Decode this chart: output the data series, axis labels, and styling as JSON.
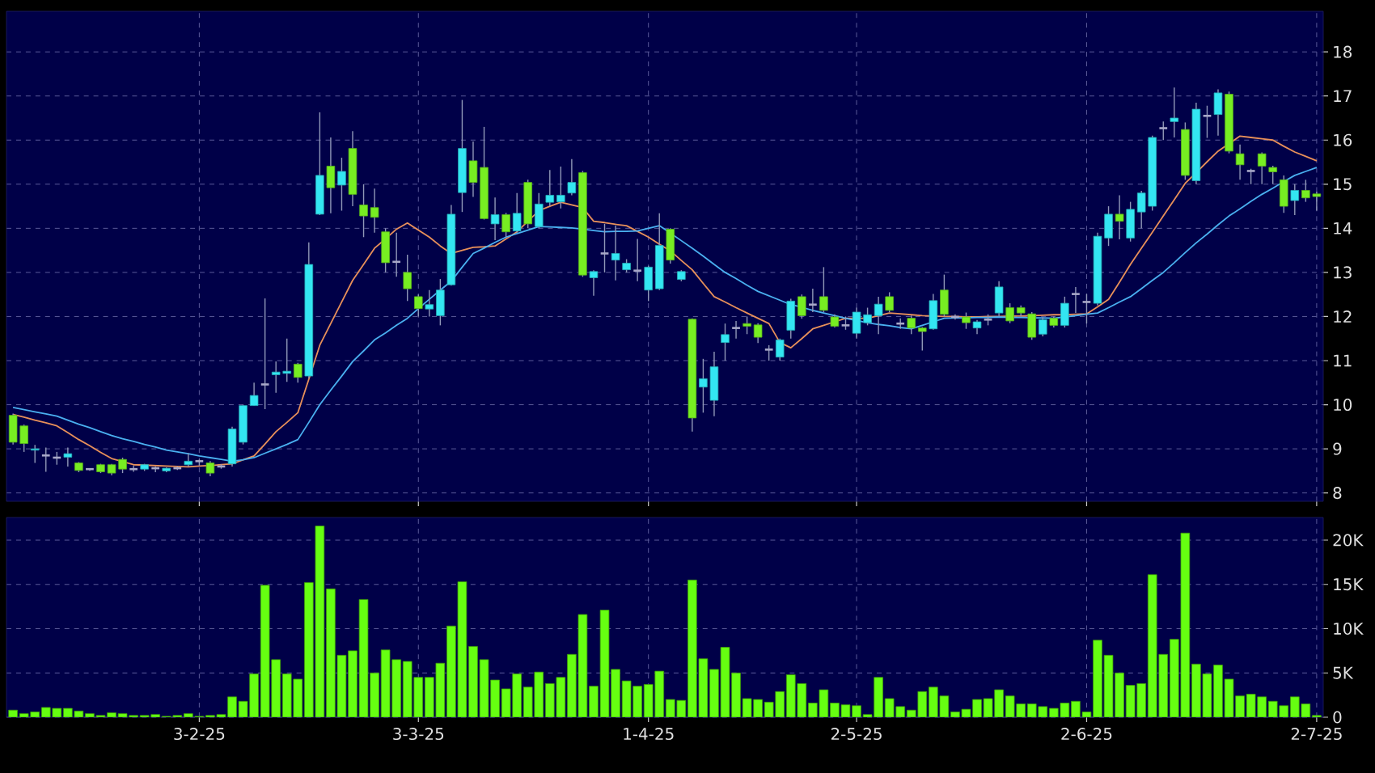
{
  "chart_data": [
    {
      "type": "candlestick",
      "tick_labels": "y",
      "grid": true,
      "ylim": [
        7.81,
        18.92
      ],
      "yticks": [
        8,
        9,
        10,
        11,
        12,
        13,
        14,
        15,
        16,
        17,
        18
      ],
      "categories": [
        null,
        null,
        null,
        null,
        null,
        null,
        null,
        null,
        null,
        null,
        null,
        null,
        null,
        null,
        null,
        null,
        null,
        null,
        null,
        null,
        null,
        null,
        null,
        null,
        null,
        null,
        null,
        null,
        null,
        null,
        null,
        null,
        null,
        null,
        null,
        null,
        null,
        null,
        null,
        null,
        null,
        null,
        null,
        null,
        null,
        null,
        null,
        null,
        null,
        null,
        null,
        null,
        null,
        null,
        null,
        null,
        null,
        null,
        null,
        null,
        null,
        null,
        null,
        null,
        null,
        null,
        null,
        null,
        null,
        null,
        null,
        null,
        null,
        null,
        null,
        null,
        null,
        null,
        null,
        null,
        null,
        null,
        null,
        null,
        null,
        null,
        null,
        null,
        null,
        null,
        null,
        null,
        null,
        null,
        null,
        null,
        null,
        null,
        null,
        null,
        null,
        null,
        null,
        null,
        null,
        null,
        null,
        null,
        null,
        null,
        null,
        null,
        null,
        null,
        null,
        null,
        null,
        null,
        null,
        null
      ],
      "ohlc": [
        [
          9.76,
          9.8,
          9.1,
          9.15
        ],
        [
          9.52,
          9.55,
          8.93,
          9.12
        ],
        [
          8.97,
          9.09,
          8.68,
          9.0
        ],
        [
          8.85,
          9.03,
          8.48,
          8.85
        ],
        [
          8.8,
          8.93,
          8.64,
          8.8
        ],
        [
          8.81,
          9.03,
          8.6,
          8.89
        ],
        [
          8.68,
          8.7,
          8.47,
          8.51
        ],
        [
          8.54,
          8.56,
          8.5,
          8.54
        ],
        [
          8.64,
          8.66,
          8.45,
          8.48
        ],
        [
          8.64,
          8.66,
          8.4,
          8.45
        ],
        [
          8.76,
          8.8,
          8.45,
          8.54
        ],
        [
          8.54,
          8.62,
          8.48,
          8.54
        ],
        [
          8.54,
          8.66,
          8.5,
          8.64
        ],
        [
          8.56,
          8.6,
          8.47,
          8.56
        ],
        [
          8.5,
          8.58,
          8.47,
          8.56
        ],
        [
          8.56,
          8.6,
          8.52,
          8.56
        ],
        [
          8.64,
          8.9,
          8.6,
          8.72
        ],
        [
          8.72,
          8.76,
          8.62,
          8.72
        ],
        [
          8.68,
          8.72,
          8.38,
          8.45
        ],
        [
          8.6,
          8.65,
          8.55,
          8.6
        ],
        [
          8.66,
          9.5,
          8.6,
          9.45
        ],
        [
          9.15,
          10.0,
          9.1,
          9.98
        ],
        [
          9.98,
          10.5,
          9.98,
          10.21
        ],
        [
          10.46,
          12.41,
          9.9,
          10.46
        ],
        [
          10.68,
          10.98,
          10.27,
          10.74
        ],
        [
          10.71,
          11.5,
          10.52,
          10.76
        ],
        [
          10.92,
          10.95,
          10.5,
          10.62
        ],
        [
          10.65,
          13.68,
          10.6,
          13.18
        ],
        [
          14.32,
          16.63,
          14.3,
          15.2
        ],
        [
          15.41,
          16.06,
          14.34,
          14.92
        ],
        [
          14.98,
          15.6,
          14.4,
          15.29
        ],
        [
          15.81,
          16.2,
          14.5,
          14.77
        ],
        [
          14.53,
          15.0,
          13.8,
          14.28
        ],
        [
          14.47,
          14.9,
          13.9,
          14.25
        ],
        [
          13.92,
          14.0,
          13.0,
          13.22
        ],
        [
          13.24,
          13.9,
          12.9,
          13.24
        ],
        [
          13.0,
          13.4,
          12.35,
          12.63
        ],
        [
          12.45,
          12.5,
          12.0,
          12.18
        ],
        [
          12.17,
          12.6,
          12.0,
          12.27
        ],
        [
          12.02,
          12.85,
          11.8,
          12.6
        ],
        [
          12.72,
          14.53,
          12.7,
          14.32
        ],
        [
          14.81,
          16.91,
          14.37,
          15.81
        ],
        [
          15.53,
          15.97,
          14.71,
          15.04
        ],
        [
          15.38,
          16.3,
          14.2,
          14.22
        ],
        [
          14.1,
          14.7,
          13.73,
          14.31
        ],
        [
          14.31,
          14.35,
          13.8,
          13.92
        ],
        [
          13.94,
          14.8,
          13.9,
          14.34
        ],
        [
          15.04,
          15.1,
          14.0,
          14.1
        ],
        [
          14.04,
          14.8,
          14.0,
          14.55
        ],
        [
          14.59,
          15.32,
          14.5,
          14.75
        ],
        [
          14.6,
          15.4,
          14.45,
          14.75
        ],
        [
          14.8,
          15.57,
          14.75,
          15.04
        ],
        [
          15.26,
          15.3,
          12.9,
          12.94
        ],
        [
          12.88,
          13.05,
          12.47,
          13.02
        ],
        [
          13.43,
          14.1,
          13.0,
          13.43
        ],
        [
          13.28,
          14.06,
          12.82,
          13.43
        ],
        [
          13.06,
          13.3,
          13.0,
          13.21
        ],
        [
          13.04,
          13.76,
          12.8,
          13.04
        ],
        [
          12.6,
          13.15,
          12.35,
          13.12
        ],
        [
          12.63,
          14.34,
          12.6,
          13.61
        ],
        [
          13.98,
          14.0,
          13.2,
          13.28
        ],
        [
          12.84,
          13.05,
          12.8,
          13.02
        ],
        [
          11.94,
          11.96,
          9.39,
          9.7
        ],
        [
          10.4,
          11.04,
          9.82,
          10.59
        ],
        [
          10.1,
          11.2,
          9.74,
          10.86
        ],
        [
          11.41,
          11.84,
          11.0,
          11.59
        ],
        [
          11.74,
          11.9,
          11.5,
          11.74
        ],
        [
          11.84,
          12.0,
          11.6,
          11.78
        ],
        [
          11.81,
          11.85,
          11.4,
          11.53
        ],
        [
          11.25,
          11.35,
          11.0,
          11.25
        ],
        [
          11.08,
          11.5,
          11.0,
          11.47
        ],
        [
          11.69,
          12.4,
          11.5,
          12.35
        ],
        [
          12.45,
          12.5,
          11.95,
          12.02
        ],
        [
          12.27,
          12.63,
          12.1,
          12.27
        ],
        [
          12.45,
          13.12,
          12.1,
          12.14
        ],
        [
          11.99,
          12.05,
          11.75,
          11.78
        ],
        [
          11.8,
          12.0,
          11.7,
          11.8
        ],
        [
          11.62,
          12.2,
          11.5,
          12.1
        ],
        [
          11.86,
          12.2,
          11.8,
          12.04
        ],
        [
          12.02,
          12.45,
          11.6,
          12.28
        ],
        [
          12.45,
          12.55,
          12.1,
          12.14
        ],
        [
          11.84,
          11.96,
          11.72,
          11.84
        ],
        [
          11.96,
          12.02,
          11.6,
          11.74
        ],
        [
          11.74,
          11.76,
          11.23,
          11.66
        ],
        [
          11.72,
          12.51,
          11.7,
          12.36
        ],
        [
          12.6,
          12.95,
          12.0,
          12.05
        ],
        [
          11.99,
          12.05,
          11.93,
          11.99
        ],
        [
          11.99,
          12.09,
          11.72,
          11.86
        ],
        [
          11.74,
          11.92,
          11.6,
          11.88
        ],
        [
          11.93,
          12.05,
          11.8,
          11.93
        ],
        [
          12.08,
          12.8,
          12.0,
          12.67
        ],
        [
          12.2,
          12.3,
          11.85,
          11.9
        ],
        [
          12.2,
          12.25,
          12.0,
          12.08
        ],
        [
          12.06,
          12.1,
          11.47,
          11.53
        ],
        [
          11.6,
          11.98,
          11.55,
          11.93
        ],
        [
          11.96,
          12.0,
          11.75,
          11.8
        ],
        [
          11.8,
          12.45,
          11.75,
          12.3
        ],
        [
          12.51,
          12.67,
          12.08,
          12.51
        ],
        [
          12.33,
          12.51,
          11.84,
          12.33
        ],
        [
          12.3,
          13.9,
          12.25,
          13.82
        ],
        [
          13.78,
          14.5,
          13.6,
          14.32
        ],
        [
          14.32,
          14.75,
          13.75,
          14.16
        ],
        [
          13.78,
          14.6,
          13.7,
          14.43
        ],
        [
          14.37,
          14.85,
          14.0,
          14.8
        ],
        [
          14.5,
          16.1,
          14.4,
          16.06
        ],
        [
          16.27,
          16.42,
          16.0,
          16.27
        ],
        [
          16.42,
          17.19,
          16.06,
          16.5
        ],
        [
          16.24,
          16.4,
          15.1,
          15.2
        ],
        [
          15.08,
          16.85,
          15.0,
          16.7
        ],
        [
          16.55,
          16.78,
          16.05,
          16.55
        ],
        [
          16.58,
          17.15,
          16.1,
          17.07
        ],
        [
          17.04,
          17.1,
          15.7,
          15.75
        ],
        [
          15.69,
          15.9,
          15.1,
          15.44
        ],
        [
          15.3,
          15.35,
          15.0,
          15.3
        ],
        [
          15.69,
          15.72,
          15.0,
          15.41
        ],
        [
          15.38,
          15.42,
          15.0,
          15.28
        ],
        [
          15.1,
          15.2,
          14.35,
          14.5
        ],
        [
          14.63,
          15.0,
          14.3,
          14.86
        ],
        [
          14.86,
          15.1,
          14.6,
          14.69
        ],
        [
          14.78,
          14.83,
          14.4,
          14.72
        ]
      ],
      "colors": [
        "#77ee22",
        "#77ee22",
        "#33e6f2",
        "#a8a8c8",
        "#a8a8c8",
        "#33e6f2",
        "#77ee22",
        "#a8a8c8",
        "#77ee22",
        "#77ee22",
        "#77ee22",
        "#a8a8c8",
        "#33e6f2",
        "#a8a8c8",
        "#33e6f2",
        "#a8a8c8",
        "#33e6f2",
        "#a8a8c8",
        "#77ee22",
        "#a8a8c8",
        "#33e6f2",
        "#33e6f2",
        "#33e6f2",
        "#a8a8c8",
        "#33e6f2",
        "#33e6f2",
        "#77ee22",
        "#33e6f2",
        "#33e6f2",
        "#77ee22",
        "#33e6f2",
        "#77ee22",
        "#77ee22",
        "#77ee22",
        "#77ee22",
        "#a8a8c8",
        "#77ee22",
        "#77ee22",
        "#33e6f2",
        "#33e6f2",
        "#33e6f2",
        "#33e6f2",
        "#77ee22",
        "#77ee22",
        "#33e6f2",
        "#77ee22",
        "#33e6f2",
        "#77ee22",
        "#33e6f2",
        "#33e6f2",
        "#33e6f2",
        "#33e6f2",
        "#77ee22",
        "#33e6f2",
        "#a8a8c8",
        "#33e6f2",
        "#33e6f2",
        "#a8a8c8",
        "#33e6f2",
        "#33e6f2",
        "#77ee22",
        "#33e6f2",
        "#77ee22",
        "#33e6f2",
        "#33e6f2",
        "#33e6f2",
        "#a8a8c8",
        "#77ee22",
        "#77ee22",
        "#a8a8c8",
        "#33e6f2",
        "#33e6f2",
        "#77ee22",
        "#a8a8c8",
        "#77ee22",
        "#77ee22",
        "#a8a8c8",
        "#33e6f2",
        "#33e6f2",
        "#33e6f2",
        "#77ee22",
        "#a8a8c8",
        "#77ee22",
        "#77ee22",
        "#33e6f2",
        "#77ee22",
        "#a8a8c8",
        "#77ee22",
        "#33e6f2",
        "#a8a8c8",
        "#33e6f2",
        "#77ee22",
        "#77ee22",
        "#77ee22",
        "#33e6f2",
        "#77ee22",
        "#33e6f2",
        "#a8a8c8",
        "#a8a8c8",
        "#33e6f2",
        "#33e6f2",
        "#77ee22",
        "#33e6f2",
        "#33e6f2",
        "#33e6f2",
        "#a8a8c8",
        "#33e6f2",
        "#77ee22",
        "#33e6f2",
        "#a8a8c8",
        "#33e6f2",
        "#77ee22",
        "#77ee22",
        "#a8a8c8",
        "#77ee22",
        "#77ee22",
        "#77ee22",
        "#33e6f2",
        "#77ee22",
        "#77ee22"
      ],
      "series": [
        {
          "type": "line",
          "color": "#e8905a",
          "values": [
            9.78,
            9.72,
            9.65,
            9.59,
            9.52,
            9.37,
            9.21,
            9.07,
            8.92,
            8.78,
            8.71,
            8.64,
            8.63,
            8.62,
            8.61,
            8.6,
            8.59,
            8.61,
            8.62,
            8.64,
            8.66,
            8.75,
            8.84,
            9.11,
            9.39,
            9.6,
            9.82,
            10.58,
            11.35,
            11.84,
            12.33,
            12.82,
            13.18,
            13.55,
            13.76,
            13.98,
            14.12,
            13.96,
            13.8,
            13.6,
            13.43,
            13.5,
            13.57,
            13.58,
            13.6,
            13.76,
            13.92,
            14.16,
            14.4,
            14.5,
            14.59,
            14.53,
            14.47,
            14.16,
            14.13,
            14.09,
            14.06,
            13.93,
            13.8,
            13.64,
            13.49,
            13.27,
            13.06,
            12.75,
            12.45,
            12.33,
            12.2,
            12.08,
            11.96,
            11.84,
            11.41,
            11.29,
            11.5,
            11.72,
            11.8,
            11.88,
            11.96,
            11.96,
            11.96,
            12.02,
            12.08,
            12.06,
            12.04,
            12.02,
            12.01,
            12.0,
            12.0,
            11.99,
            11.99,
            12.0,
            12.0,
            12.01,
            12.01,
            12.02,
            12.03,
            12.04,
            12.04,
            12.05,
            12.06,
            12.22,
            12.39,
            12.78,
            13.18,
            13.55,
            13.91,
            14.28,
            14.65,
            15.02,
            15.26,
            15.51,
            15.75,
            15.92,
            16.09,
            16.06,
            16.03,
            16.0,
            15.86,
            15.73,
            15.63,
            15.53
          ]
        },
        {
          "type": "line",
          "color": "#4ab0f0",
          "values": [
            9.94,
            9.89,
            9.84,
            9.79,
            9.74,
            9.65,
            9.56,
            9.48,
            9.39,
            9.3,
            9.23,
            9.17,
            9.1,
            9.04,
            8.97,
            8.93,
            8.89,
            8.84,
            8.8,
            8.76,
            8.72,
            8.75,
            8.8,
            8.9,
            9.0,
            9.1,
            9.21,
            9.6,
            10.0,
            10.33,
            10.65,
            10.98,
            11.22,
            11.47,
            11.63,
            11.8,
            11.96,
            12.18,
            12.39,
            12.6,
            12.8,
            13.12,
            13.43,
            13.55,
            13.68,
            13.8,
            13.88,
            13.96,
            14.04,
            14.03,
            14.02,
            14.01,
            13.98,
            13.95,
            13.92,
            13.93,
            13.93,
            13.94,
            14.0,
            14.06,
            13.89,
            13.72,
            13.55,
            13.37,
            13.18,
            13.0,
            12.86,
            12.71,
            12.57,
            12.47,
            12.37,
            12.27,
            12.21,
            12.14,
            12.08,
            12.02,
            11.96,
            11.91,
            11.86,
            11.82,
            11.79,
            11.75,
            11.72,
            11.8,
            11.88,
            11.96,
            11.97,
            11.97,
            11.98,
            11.98,
            11.99,
            11.98,
            11.98,
            11.97,
            11.97,
            11.96,
            11.99,
            12.02,
            12.05,
            12.08,
            12.2,
            12.33,
            12.45,
            12.63,
            12.82,
            13.0,
            13.22,
            13.45,
            13.67,
            13.87,
            14.08,
            14.28,
            14.44,
            14.61,
            14.77,
            14.91,
            15.06,
            15.2,
            15.29,
            15.38
          ]
        }
      ]
    },
    {
      "type": "bar",
      "grid": true,
      "color": "#66ff11",
      "ylim": [
        0,
        22560
      ],
      "yticks": [
        0,
        {
          "value": 5000,
          "label": "5K"
        },
        {
          "value": 10000,
          "label": "10K"
        },
        {
          "value": 15000,
          "label": "15K"
        },
        {
          "value": 20000,
          "label": "20K"
        }
      ],
      "categories": [
        null,
        null,
        null,
        null,
        null,
        null,
        null,
        null,
        null,
        null,
        null,
        null,
        null,
        null,
        null,
        null,
        null,
        "3-2-25",
        null,
        null,
        null,
        null,
        null,
        null,
        null,
        null,
        null,
        null,
        null,
        null,
        null,
        null,
        null,
        null,
        null,
        null,
        null,
        "3-3-25",
        null,
        null,
        null,
        null,
        null,
        null,
        null,
        null,
        null,
        null,
        null,
        null,
        null,
        null,
        null,
        null,
        null,
        null,
        null,
        null,
        "1-4-25",
        null,
        null,
        null,
        null,
        null,
        null,
        null,
        null,
        null,
        null,
        null,
        null,
        null,
        null,
        null,
        null,
        null,
        null,
        "2-5-25",
        null,
        null,
        null,
        null,
        null,
        null,
        null,
        null,
        null,
        null,
        null,
        null,
        null,
        null,
        null,
        null,
        null,
        null,
        null,
        null,
        "2-6-25",
        null,
        null,
        null,
        null,
        null,
        null,
        null,
        null,
        null,
        null,
        null,
        null,
        null,
        null,
        null,
        null,
        null,
        null,
        null,
        null,
        "2-7-25"
      ],
      "values": [
        800,
        400,
        600,
        1100,
        1000,
        1000,
        700,
        400,
        200,
        500,
        400,
        200,
        200,
        300,
        100,
        200,
        400,
        100,
        200,
        300,
        2300,
        1800,
        4900,
        14900,
        6500,
        4900,
        4300,
        15200,
        21600,
        14500,
        7000,
        7500,
        13300,
        5000,
        7600,
        6500,
        6300,
        4500,
        4500,
        6100,
        10300,
        15300,
        8000,
        6500,
        4200,
        3200,
        4900,
        3400,
        5100,
        3800,
        4500,
        7100,
        11600,
        3500,
        12100,
        5400,
        4100,
        3500,
        3700,
        5200,
        2000,
        1900,
        15500,
        6600,
        5400,
        7900,
        5000,
        2100,
        2000,
        1700,
        2900,
        4800,
        3800,
        1600,
        3100,
        1600,
        1400,
        1300,
        300,
        4500,
        2100,
        1200,
        800,
        2900,
        3400,
        2400,
        600,
        900,
        2000,
        2100,
        3100,
        2400,
        1500,
        1500,
        1200,
        1000,
        1600,
        1800,
        600,
        8700,
        7000,
        5000,
        3600,
        3800,
        16100,
        7100,
        8800,
        20800,
        6000,
        4900,
        5900,
        4300,
        2400,
        2600,
        2300,
        1800,
        1300,
        2300,
        1500,
        200
      ]
    }
  ]
}
